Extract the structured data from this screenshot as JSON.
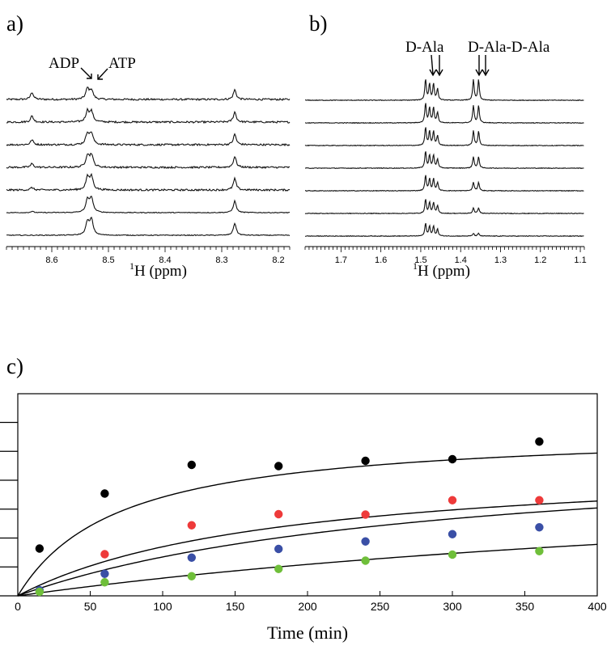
{
  "panels": {
    "a": {
      "label": "a)",
      "axis_title_sup": "1",
      "axis_title_rest": "H (ppm)",
      "peak_labels": [
        "ADP",
        "ATP"
      ],
      "tick_labels": [
        "8.6",
        "8.5",
        "8.4",
        "8.3",
        "8.2"
      ]
    },
    "b": {
      "label": "b)",
      "axis_title_sup": "1",
      "axis_title_rest": "H (ppm)",
      "peak_labels": [
        "D-Ala",
        "D-Ala-D-Ala"
      ],
      "tick_labels": [
        "1.7",
        "1.6",
        "1.5",
        "1.4",
        "1.3",
        "1.2",
        "1.1"
      ]
    },
    "c": {
      "label": "c)"
    }
  },
  "chart_data": [
    {
      "type": "line",
      "panel": "a",
      "xlabel": "1H (ppm)",
      "xlim": [
        8.68,
        8.18
      ],
      "x_reversed": true,
      "n_traces": 7,
      "peaks_ppm": [
        8.635,
        8.537,
        8.53,
        8.277
      ],
      "ticks": [
        8.6,
        8.5,
        8.4,
        8.3,
        8.2
      ]
    },
    {
      "type": "line",
      "panel": "b",
      "xlabel": "1H (ppm)",
      "xlim": [
        1.79,
        1.09
      ],
      "x_reversed": true,
      "n_traces": 7,
      "peaks_ppm": [
        1.488,
        1.478,
        1.468,
        1.458,
        1.368,
        1.355
      ],
      "ticks": [
        1.7,
        1.6,
        1.5,
        1.4,
        1.3,
        1.2,
        1.1
      ]
    },
    {
      "type": "scatter",
      "panel": "c",
      "xlabel": "Time (min)",
      "ylabel": "",
      "xlim": [
        0,
        400
      ],
      "ylim": [
        0,
        100
      ],
      "x_ticks": [
        0,
        50,
        100,
        150,
        200,
        250,
        300,
        350,
        400
      ],
      "series": [
        {
          "color": "#000000",
          "x": [
            15,
            60,
            120,
            180,
            240,
            300,
            360
          ],
          "y": [
            23.4,
            50.6,
            64.8,
            64.2,
            66.8,
            67.6,
            76.3
          ],
          "fit_vmax": 83.0,
          "fit_k": 70.0
        },
        {
          "color": "#ee3a3a",
          "x": [
            60,
            120,
            180,
            240,
            300,
            360
          ],
          "y": [
            20.6,
            34.9,
            40.4,
            40.2,
            47.3,
            47.3
          ],
          "fit_vmax": 68.0,
          "fit_k": 180.0
        },
        {
          "color": "#3a4fa6",
          "x": [
            15,
            60,
            120,
            180,
            240,
            300,
            360
          ],
          "y": [
            2.8,
            10.9,
            18.9,
            23.2,
            26.9,
            30.5,
            33.9
          ],
          "fit_vmax": 75.0,
          "fit_k": 290.0
        },
        {
          "color": "#6fbf3a",
          "x": [
            15,
            60,
            120,
            180,
            240,
            300,
            360
          ],
          "y": [
            2.0,
            6.7,
            9.7,
            13.3,
            17.4,
            20.4,
            22.1
          ],
          "fit_vmax": 70.0,
          "fit_k": 700.0
        }
      ]
    }
  ],
  "panel_c_axis": {
    "x_tick_labels": [
      "0",
      "50",
      "100",
      "150",
      "200",
      "250",
      "300",
      "350",
      "400"
    ],
    "xlabel": "Time (min)"
  }
}
